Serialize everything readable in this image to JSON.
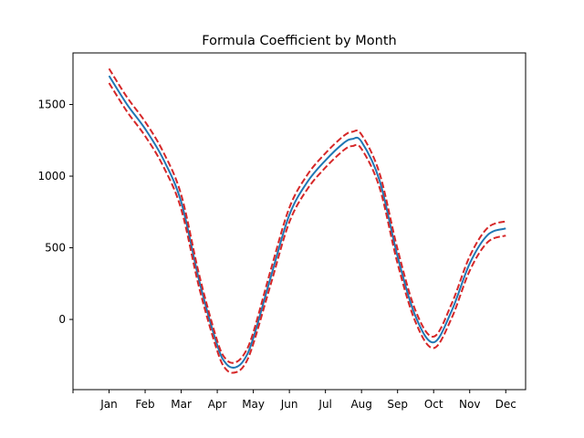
{
  "chart_data": {
    "type": "line",
    "title": "Formula Coefficient by Month",
    "xlabel": "",
    "ylabel": "",
    "x_tick_labels": [
      "",
      "Jan",
      "Feb",
      "Mar",
      "Apr",
      "May",
      "Jun",
      "Jul",
      "Aug",
      "Sep",
      "Oct",
      "Nov",
      "Dec"
    ],
    "x_tick_positions": [
      0,
      1,
      2,
      3,
      4,
      5,
      6,
      7,
      8,
      9,
      10,
      11,
      12
    ],
    "xlim": [
      0,
      12.55
    ],
    "ylim": [
      -490,
      1860
    ],
    "y_ticks": [
      0,
      500,
      1000,
      1500
    ],
    "y_tick_labels": [
      "0",
      "500",
      "1000",
      "1500"
    ],
    "grid": false,
    "legend": "none",
    "x": [
      1,
      1.5,
      2,
      2.5,
      3,
      3.5,
      4,
      4.25,
      4.5,
      4.75,
      5,
      5.5,
      6,
      6.5,
      7,
      7.5,
      7.75,
      8,
      8.5,
      9,
      9.5,
      10,
      10.5,
      11,
      11.5,
      12
    ],
    "series": [
      {
        "color": "#1f77b4",
        "style": "solid",
        "values": [
          1700,
          1500,
          1330,
          1120,
          820,
          270,
          -180,
          -310,
          -335,
          -280,
          -130,
          310,
          730,
          960,
          1110,
          1230,
          1260,
          1240,
          970,
          440,
          20,
          -160,
          60,
          390,
          590,
          635
        ]
      },
      {
        "color": "#d62728",
        "style": "dashed",
        "values": [
          1750,
          1550,
          1380,
          1170,
          870,
          310,
          -150,
          -280,
          -300,
          -240,
          -90,
          360,
          780,
          1010,
          1160,
          1280,
          1310,
          1290,
          1020,
          490,
          60,
          -120,
          110,
          440,
          640,
          685
        ]
      },
      {
        "color": "#d62728",
        "style": "dashed",
        "values": [
          1650,
          1450,
          1280,
          1070,
          770,
          220,
          -220,
          -350,
          -370,
          -320,
          -170,
          260,
          680,
          910,
          1060,
          1180,
          1210,
          1190,
          920,
          390,
          -20,
          -200,
          10,
          340,
          540,
          585
        ]
      }
    ]
  }
}
